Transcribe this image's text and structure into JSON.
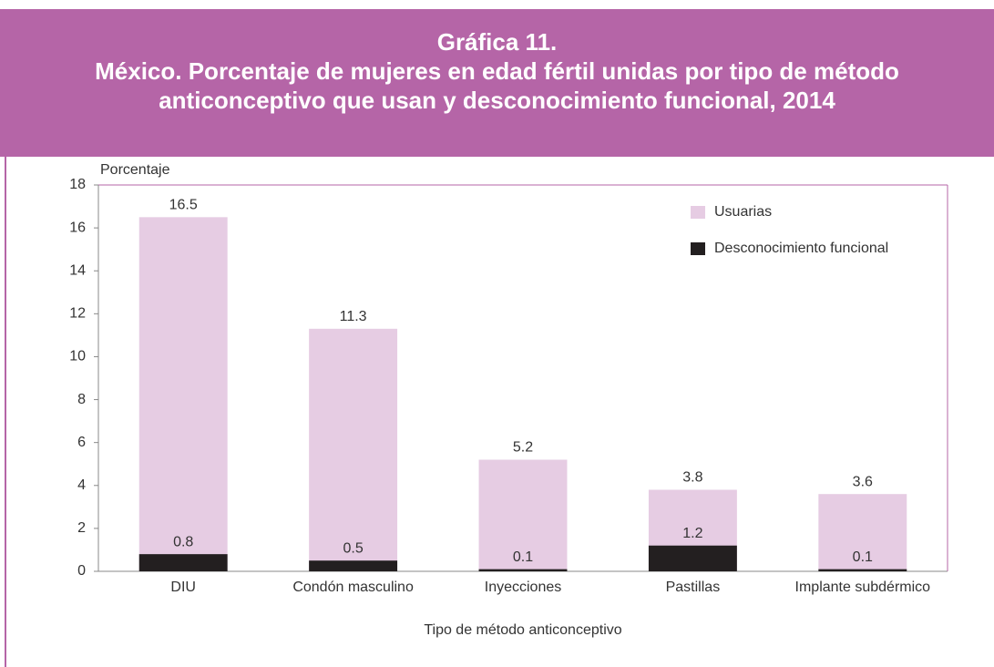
{
  "chart_data": {
    "type": "bar",
    "title": "Gráfica 11.",
    "subtitle": "México. Porcentaje de mujeres en edad fértil unidas por tipo de método anticonceptivo que usan y desconocimiento funcional, 2014",
    "y_label": "Porcentaje",
    "x_label": "Tipo de método anticonceptivo",
    "categories": [
      "DIU",
      "Condón masculino",
      "Inyecciones",
      "Pastillas",
      "Implante subdérmico"
    ],
    "series": [
      {
        "name": "Usuarias",
        "color": "#e6cce3",
        "values": [
          16.5,
          11.3,
          5.2,
          3.8,
          3.6
        ]
      },
      {
        "name": "Desconocimiento funcional",
        "color": "#231f20",
        "values": [
          0.8,
          0.5,
          0.1,
          1.2,
          0.1
        ]
      }
    ],
    "ylim": [
      0,
      18
    ],
    "yticks": [
      0,
      2,
      4,
      6,
      8,
      10,
      12,
      14,
      16,
      18
    ],
    "legend": "upper right"
  }
}
